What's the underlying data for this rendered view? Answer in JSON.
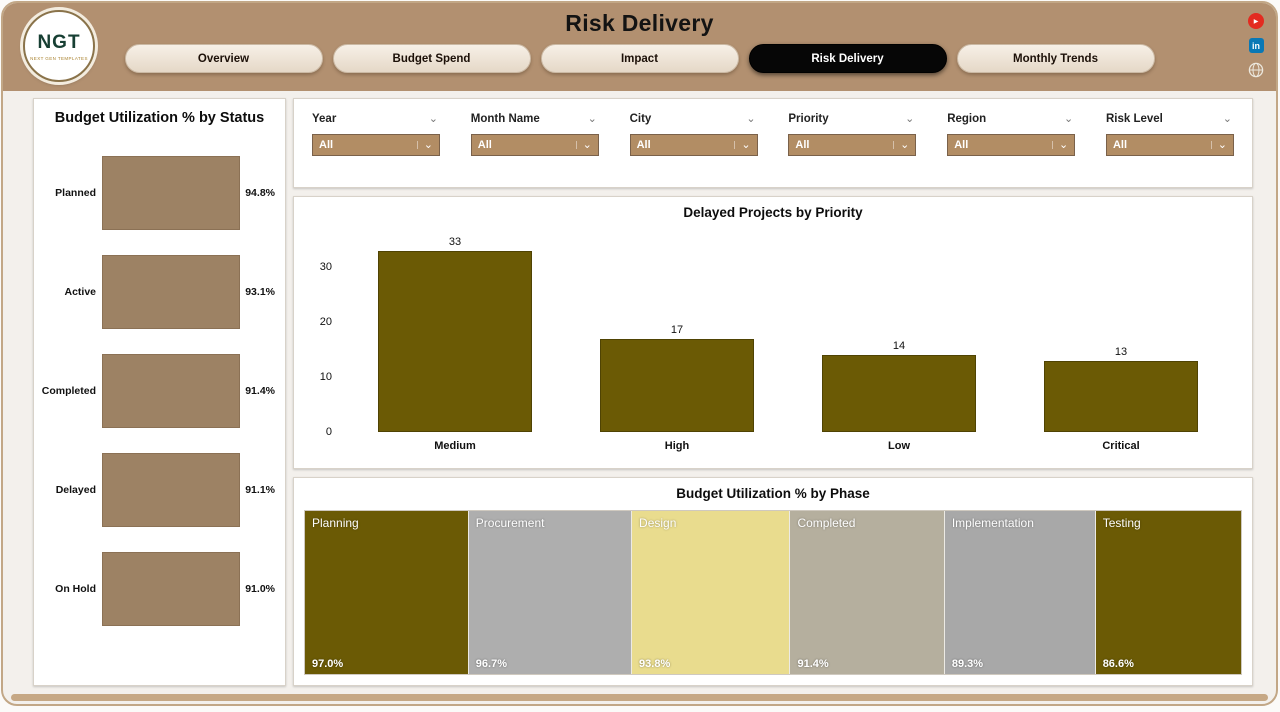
{
  "header": {
    "title": "Risk Delivery",
    "logo": {
      "text": "NGT",
      "subtext": "NEXT GEN TEMPLATES"
    },
    "tabs": [
      {
        "label": "Overview",
        "active": false
      },
      {
        "label": "Budget Spend",
        "active": false
      },
      {
        "label": "Impact",
        "active": false
      },
      {
        "label": "Risk Delivery",
        "active": true
      },
      {
        "label": "Monthly Trends",
        "active": false
      }
    ],
    "social_icons": [
      "youtube-icon",
      "linkedin-icon",
      "globe-icon"
    ]
  },
  "filters": [
    {
      "label": "Year",
      "value": "All"
    },
    {
      "label": "Month Name",
      "value": "All"
    },
    {
      "label": "City",
      "value": "All"
    },
    {
      "label": "Priority",
      "value": "All"
    },
    {
      "label": "Region",
      "value": "All"
    },
    {
      "label": "Risk Level",
      "value": "All"
    }
  ],
  "colors": {
    "header_band": "#b29070",
    "active_tab": "#060606",
    "tab_bg": "#ece0d1",
    "dropdown_bg": "#b28d64"
  },
  "chart_data": [
    {
      "type": "bar",
      "orientation": "horizontal",
      "title": "Budget Utilization % by Status",
      "categories": [
        "Planned",
        "Active",
        "Completed",
        "Delayed",
        "On Hold"
      ],
      "values": [
        94.8,
        93.1,
        91.4,
        91.1,
        91.0
      ],
      "value_labels": [
        "94.8%",
        "93.1%",
        "91.4%",
        "91.1%",
        "91.0%"
      ],
      "bar_color": "#9d8264",
      "xlim": [
        0,
        100
      ],
      "grid": false
    },
    {
      "type": "bar",
      "orientation": "vertical",
      "title": "Delayed Projects by Priority",
      "categories": [
        "Medium",
        "High",
        "Low",
        "Critical"
      ],
      "values": [
        33,
        17,
        14,
        13
      ],
      "yticks": [
        0,
        10,
        20,
        30
      ],
      "ylim": [
        0,
        35
      ],
      "bar_color": "#6b5a05",
      "grid": false
    },
    {
      "type": "treemap",
      "title": "Budget Utilization % by Phase",
      "items": [
        {
          "label": "Planning",
          "value": 97.0,
          "value_label": "97.0%",
          "color": "#6b5a05"
        },
        {
          "label": "Procurement",
          "value": 96.7,
          "value_label": "96.7%",
          "color": "#aeaeae"
        },
        {
          "label": "Design",
          "value": 93.8,
          "value_label": "93.8%",
          "color": "#e9dc8e"
        },
        {
          "label": "Completed",
          "value": 91.4,
          "value_label": "91.4%",
          "color": "#b5af9e"
        },
        {
          "label": "Implementation",
          "value": 89.3,
          "value_label": "89.3%",
          "color": "#a8a8a8"
        },
        {
          "label": "Testing",
          "value": 86.6,
          "value_label": "86.6%",
          "color": "#6b5a05"
        }
      ]
    }
  ]
}
